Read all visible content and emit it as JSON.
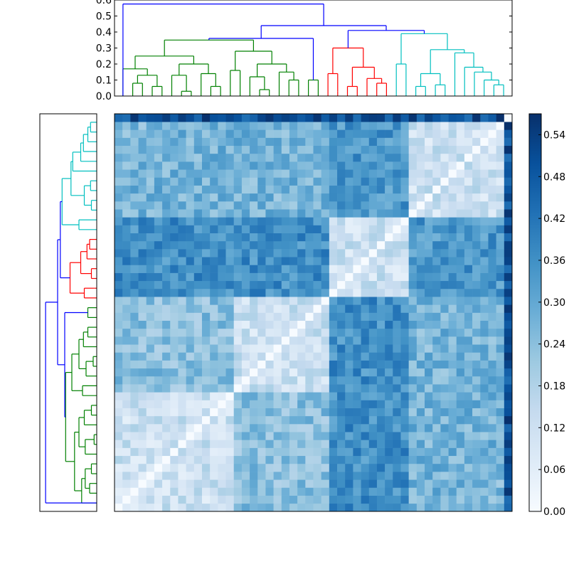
{
  "chart_data": [
    {
      "type": "dendrogram",
      "orientation": "top",
      "ytick_labels": [
        "0.0",
        "0.1",
        "0.2",
        "0.3",
        "0.4",
        "0.5",
        "0.6"
      ],
      "ylim": [
        0,
        0.6
      ],
      "leaf_count": 50,
      "cluster_colors": {
        "green": "#008000",
        "red": "#ff0000",
        "cyan": "#00bfbf",
        "link": "#0000ff"
      }
    },
    {
      "type": "dendrogram",
      "orientation": "left",
      "leaf_count": 50
    },
    {
      "type": "heatmap",
      "size": 50,
      "colormap": "Blues",
      "vmin": 0.0,
      "vmax": 0.57,
      "colorbar_tick_labels": [
        "0.00",
        "0.06",
        "0.12",
        "0.18",
        "0.24",
        "0.30",
        "0.36",
        "0.42",
        "0.48",
        "0.54"
      ],
      "clusters": [
        {
          "name": "",
          "start": 0,
          "end": 15,
          "color": "#008000"
        },
        {
          "name": "",
          "start": 15,
          "end": 27,
          "color": "#008000"
        },
        {
          "name": "",
          "start": 27,
          "end": 37,
          "color": "#ff0000"
        },
        {
          "name": "",
          "start": 37,
          "end": 49,
          "color": "#00bfbf"
        },
        {
          "name": "",
          "start": 49,
          "end": 50,
          "color": "#0000ff"
        }
      ],
      "similarity_levels": {
        "within_cluster": 0.12,
        "green_green": 0.24,
        "green_red": 0.36,
        "green_cyan": 0.27,
        "red_cyan": 0.34,
        "outlier_row": 0.5
      }
    }
  ]
}
